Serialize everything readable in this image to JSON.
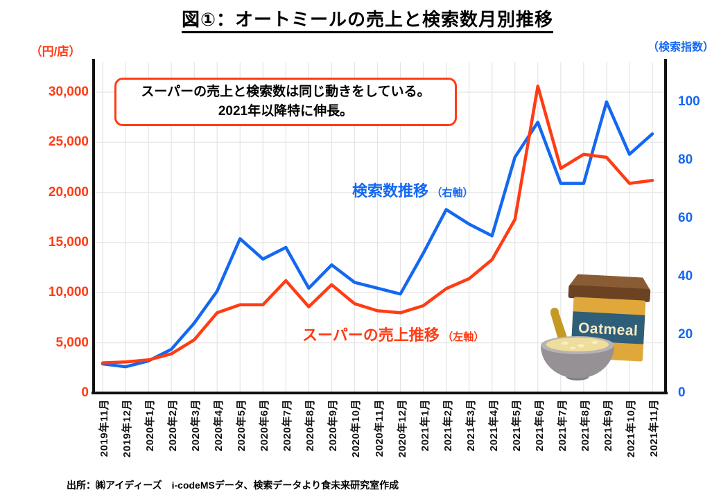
{
  "page_title": "図①：オートミールの売上と検索数月別推移",
  "colors": {
    "red": "#ff3c14",
    "blue": "#1468f0",
    "grid": "#e4e4e4",
    "axis": "#111111"
  },
  "chart_data": {
    "type": "line",
    "title": "図①：オートミールの売上と検索数月別推移",
    "categories": [
      "2019年11月",
      "2019年12月",
      "2020年1月",
      "2020年2月",
      "2020年3月",
      "2020年4月",
      "2020年5月",
      "2020年6月",
      "2020年7月",
      "2020年8月",
      "2020年9月",
      "2020年10月",
      "2020年11月",
      "2020年12月",
      "2021年1月",
      "2021年2月",
      "2021年3月",
      "2021年4月",
      "2021年5月",
      "2021年6月",
      "2021年7月",
      "2021年8月",
      "2021年9月",
      "2021年10月",
      "2021年11月"
    ],
    "series": [
      {
        "name": "スーパーの売上推移",
        "axis_note": "（左軸）",
        "axis": "left",
        "color": "red",
        "values": [
          3000,
          3100,
          3300,
          3900,
          5300,
          8000,
          8800,
          8800,
          11200,
          8600,
          10800,
          8900,
          8200,
          8000,
          8700,
          10400,
          11400,
          13300,
          17300,
          30600,
          22400,
          23800,
          23500,
          20900,
          21200
        ]
      },
      {
        "name": "検索数推移",
        "axis_note": "（右軸）",
        "axis": "right",
        "color": "blue",
        "values": [
          10,
          9,
          11,
          15,
          24,
          35,
          53,
          46,
          50,
          36,
          44,
          38,
          36,
          34,
          48,
          63,
          58,
          54,
          81,
          93,
          72,
          72,
          100,
          82,
          89
        ]
      }
    ],
    "left_axis": {
      "unit_label": "（円/店）",
      "min": 0,
      "max": 30000,
      "step": 5000,
      "tick_labels": [
        "0",
        "5,000",
        "10,000",
        "15,000",
        "20,000",
        "25,000",
        "30,000"
      ]
    },
    "right_axis": {
      "unit_label": "（検索指数）",
      "min": 0,
      "max": 100,
      "step": 20,
      "tick_labels": [
        "0",
        "20",
        "40",
        "60",
        "80",
        "100"
      ]
    },
    "annotation": {
      "line1": "スーパーの売上と検索数は同じ動きをしている。",
      "line2": "2021年以降特に伸長。"
    },
    "source": "出所：㈱アイディーズ　i-codeMSデータ、検索データより食未来研究室作成",
    "grid": true,
    "legend_position": "inline-labels"
  },
  "illustration": {
    "box_label": "Oatmeal"
  }
}
